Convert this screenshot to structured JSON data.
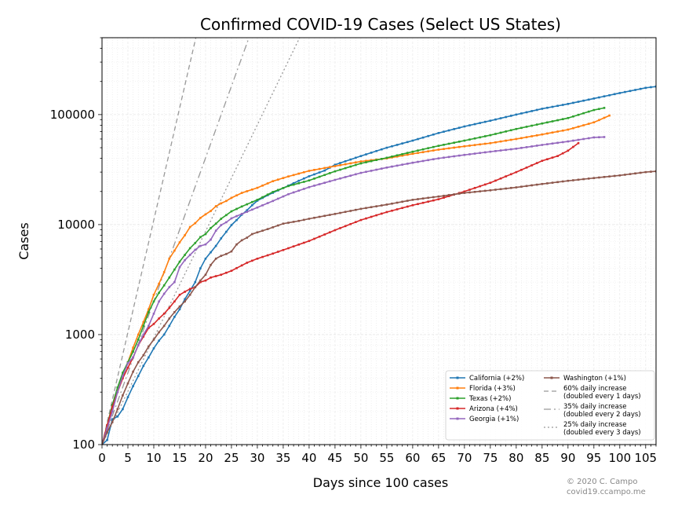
{
  "chart_data": {
    "type": "line",
    "title": "Confirmed COVID-19 Cases (Select US States)",
    "xlabel": "Days since 100 cases",
    "ylabel": "Cases",
    "xlim": [
      0,
      107
    ],
    "ylim": [
      100,
      500000
    ],
    "yscale": "log",
    "grid": true,
    "legend_position": "lower-right",
    "x_ticks": [
      0,
      5,
      10,
      15,
      20,
      25,
      30,
      35,
      40,
      45,
      50,
      55,
      60,
      65,
      70,
      75,
      80,
      85,
      90,
      95,
      100,
      105
    ],
    "x_tick_labels": [
      "0",
      "5",
      "10",
      "15",
      "20",
      "25",
      "30",
      "35",
      "40",
      "45",
      "50",
      "55",
      "60",
      "65",
      "70",
      "75",
      "80",
      "85",
      "90",
      "95",
      "100",
      "105"
    ],
    "y_ticks": [
      100,
      1000,
      10000,
      100000
    ],
    "y_tick_labels": [
      "100",
      "1000",
      "10000",
      "100000"
    ],
    "series": [
      {
        "name": "California (+2%)",
        "color": "#1f77b4",
        "points": [
          [
            0,
            100
          ],
          [
            1,
            110
          ],
          [
            2,
            170
          ],
          [
            3,
            180
          ],
          [
            4,
            210
          ],
          [
            5,
            270
          ],
          [
            6,
            340
          ],
          [
            7,
            420
          ],
          [
            8,
            520
          ],
          [
            9,
            620
          ],
          [
            10,
            750
          ],
          [
            11,
            880
          ],
          [
            12,
            1000
          ],
          [
            13,
            1200
          ],
          [
            14,
            1450
          ],
          [
            15,
            1700
          ],
          [
            16,
            2100
          ],
          [
            17,
            2500
          ],
          [
            18,
            3000
          ],
          [
            19,
            4000
          ],
          [
            20,
            4900
          ],
          [
            21,
            5600
          ],
          [
            22,
            6400
          ],
          [
            23,
            7500
          ],
          [
            24,
            8600
          ],
          [
            25,
            9900
          ],
          [
            26,
            11000
          ],
          [
            27,
            12300
          ],
          [
            28,
            13500
          ],
          [
            29,
            15000
          ],
          [
            30,
            16500
          ],
          [
            32,
            18500
          ],
          [
            35,
            21500
          ],
          [
            38,
            25000
          ],
          [
            40,
            27500
          ],
          [
            43,
            31000
          ],
          [
            45,
            35000
          ],
          [
            50,
            42000
          ],
          [
            55,
            50000
          ],
          [
            60,
            58000
          ],
          [
            65,
            68000
          ],
          [
            70,
            78000
          ],
          [
            75,
            88000
          ],
          [
            80,
            100000
          ],
          [
            85,
            113000
          ],
          [
            90,
            125000
          ],
          [
            95,
            140000
          ],
          [
            100,
            157000
          ],
          [
            105,
            175000
          ],
          [
            107,
            180000
          ]
        ]
      },
      {
        "name": "Florida (+3%)",
        "color": "#ff7f0e",
        "points": [
          [
            0,
            100
          ],
          [
            1,
            140
          ],
          [
            2,
            220
          ],
          [
            3,
            320
          ],
          [
            4,
            420
          ],
          [
            5,
            560
          ],
          [
            6,
            760
          ],
          [
            7,
            1000
          ],
          [
            8,
            1300
          ],
          [
            9,
            1700
          ],
          [
            10,
            2300
          ],
          [
            11,
            2900
          ],
          [
            12,
            3700
          ],
          [
            13,
            4900
          ],
          [
            14,
            5800
          ],
          [
            15,
            6900
          ],
          [
            16,
            8000
          ],
          [
            17,
            9500
          ],
          [
            18,
            10300
          ],
          [
            19,
            11500
          ],
          [
            20,
            12400
          ],
          [
            21,
            13300
          ],
          [
            22,
            14700
          ],
          [
            23,
            15600
          ],
          [
            24,
            16400
          ],
          [
            25,
            17500
          ],
          [
            27,
            19400
          ],
          [
            30,
            21600
          ],
          [
            33,
            24800
          ],
          [
            36,
            27400
          ],
          [
            40,
            30800
          ],
          [
            45,
            34000
          ],
          [
            50,
            37500
          ],
          [
            55,
            40000
          ],
          [
            60,
            44000
          ],
          [
            65,
            48000
          ],
          [
            70,
            51500
          ],
          [
            75,
            55000
          ],
          [
            80,
            60000
          ],
          [
            85,
            66000
          ],
          [
            90,
            73000
          ],
          [
            95,
            85000
          ],
          [
            98,
            98000
          ]
        ]
      },
      {
        "name": "Texas (+2%)",
        "color": "#2ca02c",
        "points": [
          [
            0,
            100
          ],
          [
            1,
            150
          ],
          [
            2,
            230
          ],
          [
            3,
            330
          ],
          [
            4,
            450
          ],
          [
            5,
            560
          ],
          [
            6,
            700
          ],
          [
            7,
            900
          ],
          [
            8,
            1200
          ],
          [
            9,
            1600
          ],
          [
            10,
            2000
          ],
          [
            11,
            2400
          ],
          [
            12,
            2800
          ],
          [
            13,
            3300
          ],
          [
            14,
            3900
          ],
          [
            15,
            4600
          ],
          [
            16,
            5300
          ],
          [
            17,
            6100
          ],
          [
            18,
            6800
          ],
          [
            19,
            7700
          ],
          [
            20,
            8200
          ],
          [
            21,
            9300
          ],
          [
            22,
            10200
          ],
          [
            23,
            11300
          ],
          [
            24,
            12200
          ],
          [
            25,
            13200
          ],
          [
            27,
            14600
          ],
          [
            30,
            16800
          ],
          [
            33,
            19800
          ],
          [
            36,
            22400
          ],
          [
            40,
            25200
          ],
          [
            45,
            30500
          ],
          [
            50,
            36000
          ],
          [
            55,
            40500
          ],
          [
            60,
            46000
          ],
          [
            65,
            52000
          ],
          [
            70,
            58000
          ],
          [
            75,
            65000
          ],
          [
            80,
            74000
          ],
          [
            85,
            83000
          ],
          [
            90,
            93000
          ],
          [
            95,
            110000
          ],
          [
            97,
            115000
          ]
        ]
      },
      {
        "name": "Arizona (+4%)",
        "color": "#d62728",
        "points": [
          [
            0,
            100
          ],
          [
            1,
            150
          ],
          [
            2,
            220
          ],
          [
            3,
            300
          ],
          [
            4,
            400
          ],
          [
            5,
            500
          ],
          [
            6,
            620
          ],
          [
            7,
            800
          ],
          [
            8,
            960
          ],
          [
            9,
            1150
          ],
          [
            10,
            1250
          ],
          [
            11,
            1400
          ],
          [
            12,
            1550
          ],
          [
            13,
            1750
          ],
          [
            14,
            2000
          ],
          [
            15,
            2300
          ],
          [
            16,
            2450
          ],
          [
            17,
            2600
          ],
          [
            18,
            2700
          ],
          [
            19,
            3000
          ],
          [
            20,
            3100
          ],
          [
            21,
            3300
          ],
          [
            23,
            3500
          ],
          [
            25,
            3800
          ],
          [
            28,
            4500
          ],
          [
            30,
            4900
          ],
          [
            33,
            5450
          ],
          [
            36,
            6100
          ],
          [
            40,
            7100
          ],
          [
            45,
            8900
          ],
          [
            50,
            11000
          ],
          [
            55,
            13000
          ],
          [
            60,
            15000
          ],
          [
            65,
            17000
          ],
          [
            70,
            20000
          ],
          [
            75,
            24000
          ],
          [
            80,
            30000
          ],
          [
            85,
            38000
          ],
          [
            88,
            42000
          ],
          [
            90,
            47000
          ],
          [
            92,
            55000
          ]
        ]
      },
      {
        "name": "Georgia (+1%)",
        "color": "#9467bd",
        "points": [
          [
            0,
            100
          ],
          [
            1,
            140
          ],
          [
            2,
            200
          ],
          [
            3,
            300
          ],
          [
            4,
            420
          ],
          [
            5,
            550
          ],
          [
            6,
            620
          ],
          [
            7,
            800
          ],
          [
            8,
            1000
          ],
          [
            9,
            1200
          ],
          [
            10,
            1550
          ],
          [
            11,
            2000
          ],
          [
            12,
            2350
          ],
          [
            13,
            2700
          ],
          [
            14,
            3000
          ],
          [
            15,
            4100
          ],
          [
            16,
            4750
          ],
          [
            17,
            5300
          ],
          [
            18,
            5900
          ],
          [
            19,
            6400
          ],
          [
            20,
            6600
          ],
          [
            21,
            7300
          ],
          [
            22,
            8800
          ],
          [
            23,
            9900
          ],
          [
            24,
            10500
          ],
          [
            25,
            11400
          ],
          [
            27,
            12500
          ],
          [
            30,
            14300
          ],
          [
            33,
            16400
          ],
          [
            36,
            18900
          ],
          [
            40,
            21900
          ],
          [
            45,
            25500
          ],
          [
            50,
            29500
          ],
          [
            55,
            33000
          ],
          [
            60,
            36500
          ],
          [
            65,
            40000
          ],
          [
            70,
            43000
          ],
          [
            75,
            46000
          ],
          [
            80,
            49000
          ],
          [
            85,
            53000
          ],
          [
            90,
            57000
          ],
          [
            95,
            62000
          ],
          [
            97,
            62500
          ]
        ]
      },
      {
        "name": "Washington (+1%)",
        "color": "#8c564b",
        "points": [
          [
            0,
            100
          ],
          [
            1,
            130
          ],
          [
            2,
            160
          ],
          [
            3,
            210
          ],
          [
            4,
            280
          ],
          [
            5,
            360
          ],
          [
            6,
            460
          ],
          [
            7,
            560
          ],
          [
            8,
            650
          ],
          [
            9,
            780
          ],
          [
            10,
            900
          ],
          [
            11,
            1050
          ],
          [
            12,
            1200
          ],
          [
            13,
            1400
          ],
          [
            14,
            1600
          ],
          [
            15,
            1800
          ],
          [
            16,
            2000
          ],
          [
            17,
            2300
          ],
          [
            18,
            2700
          ],
          [
            19,
            3100
          ],
          [
            20,
            3500
          ],
          [
            21,
            4300
          ],
          [
            22,
            4900
          ],
          [
            23,
            5200
          ],
          [
            24,
            5400
          ],
          [
            25,
            5700
          ],
          [
            26,
            6600
          ],
          [
            27,
            7200
          ],
          [
            28,
            7600
          ],
          [
            29,
            8200
          ],
          [
            30,
            8500
          ],
          [
            32,
            9100
          ],
          [
            35,
            10200
          ],
          [
            38,
            10800
          ],
          [
            40,
            11300
          ],
          [
            45,
            12500
          ],
          [
            50,
            13900
          ],
          [
            55,
            15200
          ],
          [
            60,
            16800
          ],
          [
            65,
            18000
          ],
          [
            70,
            19400
          ],
          [
            75,
            20500
          ],
          [
            80,
            21800
          ],
          [
            85,
            23400
          ],
          [
            90,
            25000
          ],
          [
            95,
            26500
          ],
          [
            100,
            28000
          ],
          [
            105,
            30000
          ],
          [
            107,
            30500
          ]
        ]
      }
    ],
    "reference_lines": [
      {
        "name": "60% daily increase\n(doubled every 1 days)",
        "color": "#999999",
        "style": "dashed",
        "daily_rate": 0.6
      },
      {
        "name": "35% daily increase\n(doubled every 2 days)",
        "color": "#999999",
        "style": "dashdot",
        "daily_rate": 0.35
      },
      {
        "name": "25% daily increase\n(doubled every 3 days)",
        "color": "#999999",
        "style": "dotted",
        "daily_rate": 0.25
      }
    ],
    "legend": {
      "col1": [
        "California (+2%)",
        "Florida (+3%)",
        "Texas (+2%)",
        "Arizona (+4%)",
        "Georgia (+1%)"
      ],
      "col2": [
        "Washington (+1%)",
        "60% daily increase",
        "(doubled every 1 days)",
        "35% daily increase",
        "(doubled every 2 days)",
        "25% daily increase",
        "(doubled every 3 days)"
      ]
    },
    "credit": [
      "© 2020 C. Campo",
      "covid19.ccampo.me"
    ]
  }
}
